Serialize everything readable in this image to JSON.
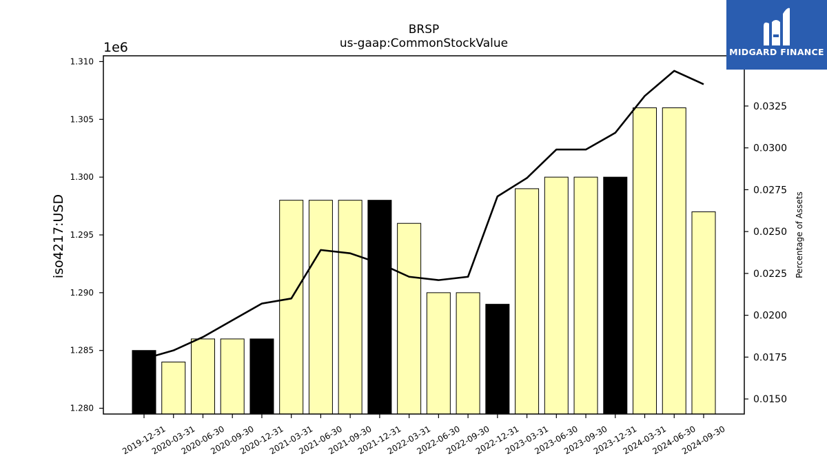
{
  "chart_data": {
    "type": "bar",
    "title": "BRSP",
    "subtitle": "us-gaap:CommonStockValue",
    "ylabel": "iso4217:USD",
    "y_offset_label": "1e6",
    "y2label": "Percentage of Assets",
    "categories": [
      "2019-12-31",
      "2020-03-31",
      "2020-06-30",
      "2020-09-30",
      "2020-12-31",
      "2021-03-31",
      "2021-06-30",
      "2021-09-30",
      "2021-12-31",
      "2022-03-31",
      "2022-06-30",
      "2022-09-30",
      "2022-12-31",
      "2023-03-31",
      "2023-06-30",
      "2023-09-30",
      "2023-12-31",
      "2024-03-31",
      "2024-06-30",
      "2024-09-30"
    ],
    "values": [
      1285000,
      1284000,
      1286000,
      1286000,
      1286000,
      1298000,
      1298000,
      1298000,
      1298000,
      1296000,
      1290000,
      1290000,
      1289000,
      1299000,
      1300000,
      1300000,
      1300000,
      1306000,
      1306000,
      1297000
    ],
    "highlight": [
      true,
      false,
      false,
      false,
      true,
      false,
      false,
      false,
      true,
      false,
      false,
      false,
      true,
      false,
      false,
      false,
      true,
      false,
      false,
      false
    ],
    "line_values": [
      0.0174,
      0.0179,
      0.0187,
      0.0197,
      0.0207,
      0.021,
      0.0239,
      0.0237,
      0.0231,
      0.0223,
      0.0221,
      0.0223,
      0.0271,
      0.0282,
      0.0299,
      0.0299,
      0.0309,
      0.0331,
      0.0346,
      0.0338
    ],
    "ylim": [
      1279500,
      1310500
    ],
    "y2lim": [
      0.0141,
      0.0355
    ],
    "yticks": [
      "1.280",
      "1.285",
      "1.290",
      "1.295",
      "1.300",
      "1.305",
      "1.310"
    ],
    "y2ticks": [
      "0.0150",
      "0.0175",
      "0.0200",
      "0.0225",
      "0.0250",
      "0.0275",
      "0.0300",
      "0.0325"
    ],
    "colors": {
      "bar": "#ffffb3",
      "bar_highlight": "#000000",
      "line": "#000000",
      "axis": "#000000"
    }
  },
  "logo": {
    "text": "MIDGARD FINANCE",
    "background": "#2a5db0"
  }
}
